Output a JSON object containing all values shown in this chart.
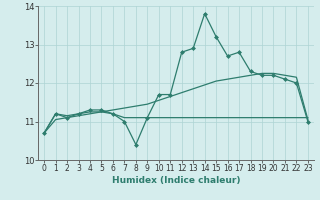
{
  "x": [
    0,
    1,
    2,
    3,
    4,
    5,
    6,
    7,
    8,
    9,
    10,
    11,
    12,
    13,
    14,
    15,
    16,
    17,
    18,
    19,
    20,
    21,
    22,
    23
  ],
  "line1": [
    10.7,
    11.2,
    11.1,
    11.2,
    11.3,
    11.3,
    11.2,
    11.0,
    10.4,
    11.1,
    11.7,
    11.7,
    12.8,
    12.9,
    13.8,
    13.2,
    12.7,
    12.8,
    12.3,
    12.2,
    12.2,
    12.1,
    12.0,
    11.0
  ],
  "line2": [
    10.7,
    11.2,
    11.15,
    11.2,
    11.25,
    11.25,
    11.2,
    11.1,
    11.1,
    11.1,
    11.1,
    11.1,
    11.1,
    11.1,
    11.1,
    11.1,
    11.1,
    11.1,
    11.1,
    11.1,
    11.1,
    11.1,
    11.1,
    11.1
  ],
  "line3": [
    10.7,
    11.05,
    11.1,
    11.15,
    11.2,
    11.25,
    11.3,
    11.35,
    11.4,
    11.45,
    11.55,
    11.65,
    11.75,
    11.85,
    11.95,
    12.05,
    12.1,
    12.15,
    12.2,
    12.25,
    12.25,
    12.2,
    12.15,
    11.05
  ],
  "bg_color": "#d5eded",
  "grid_color": "#aed4d4",
  "line_color": "#2e7d6e",
  "xlabel": "Humidex (Indice chaleur)",
  "ylim": [
    10.0,
    14.0
  ],
  "xlim": [
    -0.5,
    23.5
  ],
  "yticks": [
    10,
    11,
    12,
    13,
    14
  ],
  "xticks": [
    0,
    1,
    2,
    3,
    4,
    5,
    6,
    7,
    8,
    9,
    10,
    11,
    12,
    13,
    14,
    15,
    16,
    17,
    18,
    19,
    20,
    21,
    22,
    23
  ],
  "marker": "D",
  "markersize": 2.0,
  "linewidth": 0.9,
  "tick_labelsize": 5.5,
  "xlabel_fontsize": 6.5
}
